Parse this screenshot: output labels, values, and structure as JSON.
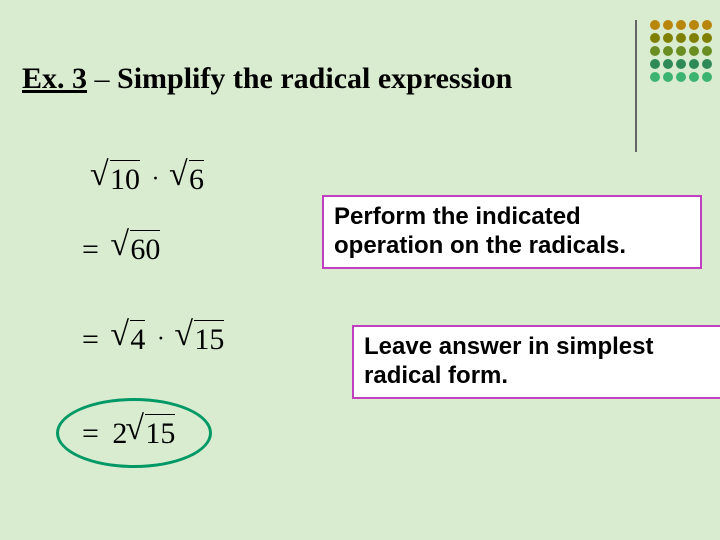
{
  "title": {
    "ex_label": "Ex. 3",
    "separator": " – ",
    "text": "Simplify the radical expression"
  },
  "decoration": {
    "dot_colors": [
      "#b8860b",
      "#b8860b",
      "#b8860b",
      "#b8860b",
      "#b8860b",
      "#808000",
      "#808000",
      "#808000",
      "#808000",
      "#808000",
      "#6b8e23",
      "#6b8e23",
      "#6b8e23",
      "#6b8e23",
      "#6b8e23",
      "#2e8b57",
      "#2e8b57",
      "#2e8b57",
      "#2e8b57",
      "#2e8b57",
      "#3cb371",
      "#3cb371",
      "#3cb371",
      "#3cb371",
      "#3cb371"
    ]
  },
  "math": {
    "line1": {
      "rad1": "10",
      "rad2": "6"
    },
    "line2": {
      "rad": "60"
    },
    "line3": {
      "rad1": "4",
      "rad2": "15"
    },
    "line4": {
      "coef": "2",
      "rad": "15"
    }
  },
  "callouts": {
    "c1": "Perform the indicated operation on the radicals.",
    "c2": "Leave answer in simplest radical form."
  },
  "styling": {
    "background_color": "#d9ecd0",
    "callout_border_color": "#c040c0",
    "callout_bg_color": "#ffffff",
    "circle_color": "#009966",
    "title_fontsize": 30,
    "callout_fontsize": 24,
    "math_fontsize": 30
  }
}
